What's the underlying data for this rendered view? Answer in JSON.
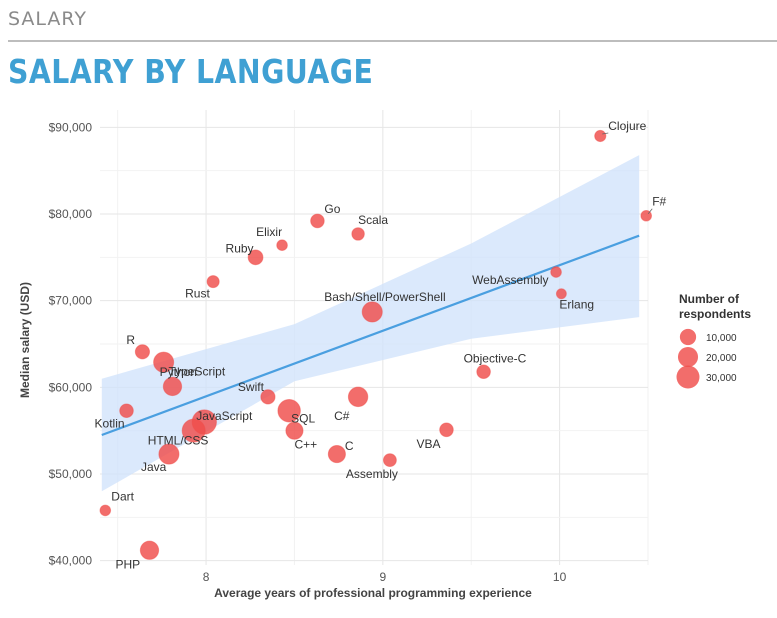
{
  "header": {
    "section": "SALARY",
    "title": "SALARY BY LANGUAGE"
  },
  "chart_data": {
    "type": "scatter",
    "title": "SALARY BY LANGUAGE",
    "xlabel": "Average years of professional programming experience",
    "ylabel": "Median salary (USD)",
    "xlim": [
      7.4,
      10.5
    ],
    "ylim": [
      39500,
      92000
    ],
    "x_ticks": [
      8,
      9,
      10
    ],
    "y_ticks": [
      40000,
      50000,
      60000,
      70000,
      80000,
      90000
    ],
    "y_tick_labels": [
      "$40,000",
      "$50,000",
      "$60,000",
      "$70,000",
      "$80,000",
      "$90,000"
    ],
    "grid": true,
    "point_color": "#ef4d4a",
    "trend_color": "#4a9fe0",
    "band_color": "#cfe2fb",
    "trend": {
      "x": [
        7.41,
        10.45
      ],
      "y": [
        54500,
        77500
      ]
    },
    "band_upper": [
      [
        7.41,
        61000
      ],
      [
        8.5,
        67300
      ],
      [
        9.5,
        76600
      ],
      [
        10.45,
        86800
      ]
    ],
    "band_lower": [
      [
        10.45,
        68100
      ],
      [
        9.5,
        65600
      ],
      [
        8.5,
        60700
      ],
      [
        7.41,
        48000
      ]
    ],
    "points": [
      {
        "name": "Clojure",
        "x": 10.23,
        "y": 89000,
        "n": 2000
      },
      {
        "name": "F#",
        "x": 10.49,
        "y": 79800,
        "n": 1500
      },
      {
        "name": "Go",
        "x": 8.63,
        "y": 79200,
        "n": 5000
      },
      {
        "name": "Scala",
        "x": 8.86,
        "y": 77700,
        "n": 3500
      },
      {
        "name": "Elixir",
        "x": 8.43,
        "y": 76400,
        "n": 1500
      },
      {
        "name": "Ruby",
        "x": 8.28,
        "y": 75000,
        "n": 7000
      },
      {
        "name": "Rust",
        "x": 8.04,
        "y": 72200,
        "n": 3000
      },
      {
        "name": "WebAssembly",
        "x": 9.98,
        "y": 73300,
        "n": 1500
      },
      {
        "name": "Erlang",
        "x": 10.01,
        "y": 70800,
        "n": 1000
      },
      {
        "name": "Bash/Shell/PowerShell",
        "x": 8.94,
        "y": 68700,
        "n": 20000
      },
      {
        "name": "R",
        "x": 7.64,
        "y": 64100,
        "n": 6000
      },
      {
        "name": "Python",
        "x": 7.76,
        "y": 62900,
        "n": 20000
      },
      {
        "name": "Objective-C",
        "x": 9.57,
        "y": 61800,
        "n": 5000
      },
      {
        "name": "TypeScript",
        "x": 7.81,
        "y": 60100,
        "n": 15000
      },
      {
        "name": "Swift",
        "x": 8.35,
        "y": 58900,
        "n": 6000
      },
      {
        "name": "C#",
        "x": 8.86,
        "y": 58900,
        "n": 18000
      },
      {
        "name": "Kotlin",
        "x": 7.55,
        "y": 57300,
        "n": 5000
      },
      {
        "name": "JavaScript",
        "x": 7.99,
        "y": 56000,
        "n": 35000
      },
      {
        "name": "SQL",
        "x": 8.47,
        "y": 57300,
        "n": 28000
      },
      {
        "name": "HTML/CSS",
        "x": 7.93,
        "y": 55000,
        "n": 30000
      },
      {
        "name": "C++",
        "x": 8.5,
        "y": 55000,
        "n": 12000
      },
      {
        "name": "VBA",
        "x": 9.36,
        "y": 55100,
        "n": 5000
      },
      {
        "name": "Java",
        "x": 7.79,
        "y": 52300,
        "n": 20000
      },
      {
        "name": "C",
        "x": 8.74,
        "y": 52300,
        "n": 12000
      },
      {
        "name": "Assembly",
        "x": 9.04,
        "y": 51600,
        "n": 4000
      },
      {
        "name": "Dart",
        "x": 7.43,
        "y": 45800,
        "n": 1500
      },
      {
        "name": "PHP",
        "x": 7.68,
        "y": 41200,
        "n": 15000
      }
    ],
    "legend": {
      "title_lines": [
        "Number of",
        "respondents"
      ],
      "placement": "right",
      "entries": [
        {
          "label": "10,000",
          "n": 10000
        },
        {
          "label": "20,000",
          "n": 20000
        },
        {
          "label": "30,000",
          "n": 30000
        }
      ]
    }
  }
}
